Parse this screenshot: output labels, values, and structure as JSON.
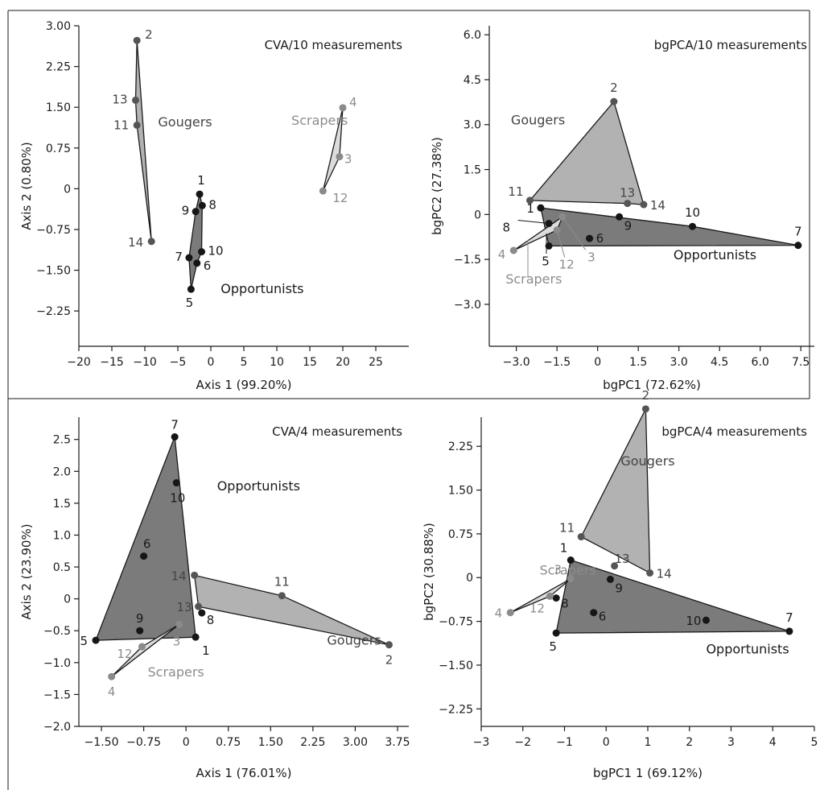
{
  "colors": {
    "Opportunists": {
      "fill": "#7b7b7b",
      "point": "#161616",
      "text": "#1a1a1a"
    },
    "Gougers": {
      "fill": "#b2b2b2",
      "point": "#555555",
      "text": "#444444"
    },
    "Scrapers": {
      "fill": "#dcdcdc",
      "point": "#8a8a8a",
      "text": "#8c8c8c"
    }
  },
  "chart_data": [
    {
      "type": "scatter",
      "title": "CVA/10 measurements",
      "xlabel": "Axis 1 (99.20%)",
      "ylabel": "Axis 2 (0.80%)",
      "xlim": [
        -20,
        30
      ],
      "ylim": [
        -2.9,
        3.0
      ],
      "xticks": [
        -20,
        -15,
        -10,
        -5,
        0,
        5,
        10,
        15,
        20,
        25
      ],
      "yticks": [
        -2.25,
        -1.5,
        -0.75,
        0,
        0.75,
        1.5,
        2.25,
        3.0
      ],
      "ytick_labels": [
        "−2.25",
        "−1.50",
        "−0.75",
        "0",
        "0.75",
        "1.50",
        "2.25",
        "3.00"
      ],
      "xtick_labels": [
        "−20",
        "−15",
        "−10",
        "−5",
        "0",
        "5",
        "10",
        "15",
        "20",
        "25"
      ],
      "groups": [
        {
          "name": "Gougers",
          "hull": [
            "2",
            "13",
            "11",
            "14"
          ],
          "points": [
            {
              "id": "2",
              "x": -11.2,
              "y": 2.73
            },
            {
              "id": "13",
              "x": -11.4,
              "y": 1.63
            },
            {
              "id": "11",
              "x": -11.2,
              "y": 1.17
            },
            {
              "id": "14",
              "x": -9.0,
              "y": -0.97
            }
          ]
        },
        {
          "name": "Opportunists",
          "hull": [
            "1",
            "8",
            "10",
            "6",
            "5",
            "7",
            "9"
          ],
          "points": [
            {
              "id": "1",
              "x": -1.7,
              "y": -0.1
            },
            {
              "id": "8",
              "x": -1.3,
              "y": -0.31
            },
            {
              "id": "9",
              "x": -2.3,
              "y": -0.42
            },
            {
              "id": "10",
              "x": -1.4,
              "y": -1.16
            },
            {
              "id": "7",
              "x": -3.3,
              "y": -1.27
            },
            {
              "id": "6",
              "x": -2.1,
              "y": -1.37
            },
            {
              "id": "5",
              "x": -3.0,
              "y": -1.85
            }
          ]
        },
        {
          "name": "Scrapers",
          "hull": [
            "4",
            "3",
            "12"
          ],
          "points": [
            {
              "id": "4",
              "x": 20.0,
              "y": 1.49
            },
            {
              "id": "3",
              "x": 19.5,
              "y": 0.59
            },
            {
              "id": "12",
              "x": 17.0,
              "y": -0.04
            }
          ]
        }
      ]
    },
    {
      "type": "scatter",
      "title": "bgPCA/10 measurements",
      "xlabel": "bgPC1 (72.62%)",
      "ylabel": "bgPC2 (27.38%)",
      "xlim": [
        -4.0,
        8.0
      ],
      "ylim": [
        -4.4,
        6.3
      ],
      "xticks": [
        -3.0,
        -1.5,
        0,
        1.5,
        3.0,
        4.5,
        6.0,
        7.5
      ],
      "xtick_labels": [
        "−3.0",
        "−1.5",
        "0",
        "1.5",
        "3.0",
        "4.5",
        "6.0",
        "7.5"
      ],
      "yticks": [
        -3.0,
        -1.5,
        0,
        1.5,
        3.0,
        4.5,
        6.0
      ],
      "ytick_labels": [
        "−3.0",
        "−1.5",
        "0",
        "1.5",
        "3.0",
        "4.5",
        "6.0"
      ],
      "groups": [
        {
          "name": "Gougers",
          "hull": [
            "2",
            "14",
            "13",
            "11"
          ],
          "points": [
            {
              "id": "2",
              "x": 0.6,
              "y": 3.77
            },
            {
              "id": "11",
              "x": -2.5,
              "y": 0.47
            },
            {
              "id": "13",
              "x": 1.1,
              "y": 0.37
            },
            {
              "id": "14",
              "x": 1.7,
              "y": 0.33
            }
          ]
        },
        {
          "name": "Opportunists",
          "hull": [
            "1",
            "10",
            "7",
            "5"
          ],
          "points": [
            {
              "id": "1",
              "x": -2.1,
              "y": 0.22
            },
            {
              "id": "9",
              "x": 0.8,
              "y": -0.08
            },
            {
              "id": "10",
              "x": 3.5,
              "y": -0.4
            },
            {
              "id": "8",
              "x": -1.8,
              "y": -0.3
            },
            {
              "id": "6",
              "x": -0.3,
              "y": -0.8
            },
            {
              "id": "5",
              "x": -1.8,
              "y": -1.05
            },
            {
              "id": "7",
              "x": 7.4,
              "y": -1.03
            }
          ]
        },
        {
          "name": "Scrapers",
          "hull": [
            "4",
            "3",
            "12"
          ],
          "points": [
            {
              "id": "4",
              "x": -3.1,
              "y": -1.2
            },
            {
              "id": "12",
              "x": -1.5,
              "y": -0.52
            },
            {
              "id": "3",
              "x": -1.3,
              "y": -0.08
            }
          ]
        }
      ]
    },
    {
      "type": "scatter",
      "title": "CVA/4 measurements",
      "xlabel": "Axis 1 (76.01%)",
      "ylabel": "Axis 2 (23.90%)",
      "xlim": [
        -1.9,
        3.95
      ],
      "ylim": [
        -2.0,
        2.85
      ],
      "xticks": [
        -1.5,
        -0.75,
        0,
        0.75,
        1.5,
        2.25,
        3.0,
        3.75
      ],
      "xtick_labels": [
        "−1.50",
        "−0.75",
        "0",
        "0.75",
        "1.50",
        "2.25",
        "3.00",
        "3.75"
      ],
      "yticks": [
        -2.0,
        -1.5,
        -1.0,
        -0.5,
        0,
        0.5,
        1.0,
        1.5,
        2.0,
        2.5
      ],
      "ytick_labels": [
        "−2.0",
        "−1.5",
        "−1.0",
        "−0.5",
        "0",
        "0.5",
        "1.0",
        "1.5",
        "2.0",
        "2.5"
      ],
      "groups": [
        {
          "name": "Gougers",
          "hull": [
            "14",
            "11",
            "2",
            "13"
          ],
          "points": [
            {
              "id": "14",
              "x": 0.15,
              "y": 0.37
            },
            {
              "id": "11",
              "x": 1.7,
              "y": 0.05
            },
            {
              "id": "13",
              "x": 0.22,
              "y": -0.12
            },
            {
              "id": "2",
              "x": 3.6,
              "y": -0.72
            }
          ]
        },
        {
          "name": "Opportunists",
          "hull": [
            "7",
            "1",
            "5"
          ],
          "points": [
            {
              "id": "7",
              "x": -0.2,
              "y": 2.54
            },
            {
              "id": "10",
              "x": -0.17,
              "y": 1.82
            },
            {
              "id": "6",
              "x": -0.75,
              "y": 0.67
            },
            {
              "id": "9",
              "x": -0.82,
              "y": -0.5
            },
            {
              "id": "8",
              "x": 0.28,
              "y": -0.22
            },
            {
              "id": "1",
              "x": 0.17,
              "y": -0.6
            },
            {
              "id": "5",
              "x": -1.6,
              "y": -0.65
            }
          ]
        },
        {
          "name": "Scrapers",
          "hull": [
            "4",
            "12",
            "3"
          ],
          "points": [
            {
              "id": "3",
              "x": -0.12,
              "y": -0.4
            },
            {
              "id": "12",
              "x": -0.78,
              "y": -0.75
            },
            {
              "id": "4",
              "x": -1.32,
              "y": -1.22
            }
          ]
        }
      ]
    },
    {
      "type": "scatter",
      "title": "bgPCA/4 measurements",
      "xlabel": "bgPC1 1 (69.12%)",
      "ylabel": "bgPC2 (30.88%)",
      "xlim": [
        -3,
        5
      ],
      "ylim": [
        -2.55,
        2.75
      ],
      "xticks": [
        -3,
        -2,
        -1,
        0,
        1,
        2,
        3,
        4,
        5
      ],
      "xtick_labels": [
        "−3",
        "−2",
        "−1",
        "0",
        "1",
        "2",
        "3",
        "4",
        "5"
      ],
      "yticks": [
        -2.25,
        -1.5,
        -0.75,
        0,
        0.75,
        1.5,
        2.25
      ],
      "ytick_labels": [
        "−2.25",
        "−1.50",
        "−0.75",
        "0",
        "0.75",
        "1.50",
        "2.25"
      ],
      "groups": [
        {
          "name": "Gougers",
          "hull": [
            "2",
            "14",
            "11"
          ],
          "points": [
            {
              "id": "2",
              "x": 0.95,
              "y": 2.89
            },
            {
              "id": "11",
              "x": -0.6,
              "y": 0.7
            },
            {
              "id": "13",
              "x": 0.2,
              "y": 0.2
            },
            {
              "id": "14",
              "x": 1.05,
              "y": 0.08
            }
          ]
        },
        {
          "name": "Opportunists",
          "hull": [
            "1",
            "7",
            "5"
          ],
          "points": [
            {
              "id": "1",
              "x": -0.85,
              "y": 0.3
            },
            {
              "id": "9",
              "x": 0.1,
              "y": -0.03
            },
            {
              "id": "8",
              "x": -1.2,
              "y": -0.35
            },
            {
              "id": "6",
              "x": -0.3,
              "y": -0.6
            },
            {
              "id": "10",
              "x": 2.4,
              "y": -0.73
            },
            {
              "id": "5",
              "x": -1.2,
              "y": -0.95
            },
            {
              "id": "7",
              "x": 4.4,
              "y": -0.92
            }
          ]
        },
        {
          "name": "Scrapers",
          "hull": [
            "4",
            "3",
            "12"
          ],
          "points": [
            {
              "id": "3",
              "x": -0.85,
              "y": -0.02
            },
            {
              "id": "12",
              "x": -1.35,
              "y": -0.32
            },
            {
              "id": "4",
              "x": -2.3,
              "y": -0.6
            }
          ]
        }
      ]
    }
  ]
}
